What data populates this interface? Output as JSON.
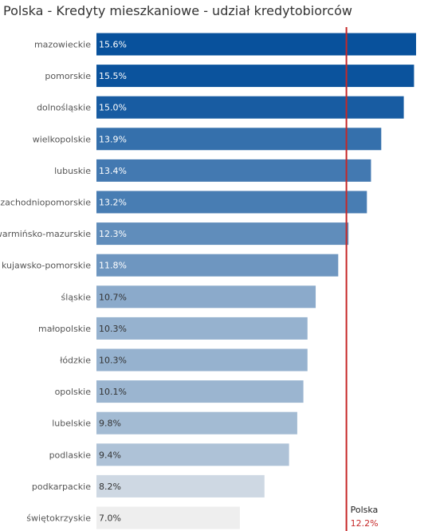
{
  "title": "Polska - Kredyty mieszkaniowe - udział kredytobiorców",
  "chart_data": {
    "type": "bar",
    "orientation": "horizontal",
    "title": "Polska - Kredyty mieszkaniowe - udział kredytobiorców",
    "categories": [
      "mazowieckie",
      "pomorskie",
      "dolnośląskie",
      "wielkopolskie",
      "lubuskie",
      "zachodniopomorskie",
      "warmińsko-mazurskie",
      "kujawsko-pomorskie",
      "śląskie",
      "małopolskie",
      "łódzkie",
      "opolskie",
      "lubelskie",
      "podlaskie",
      "podkarpackie",
      "świętokrzyskie"
    ],
    "values": [
      15.6,
      15.5,
      15.0,
      13.9,
      13.4,
      13.2,
      12.3,
      11.8,
      10.7,
      10.3,
      10.3,
      10.1,
      9.8,
      9.4,
      8.2,
      7.0
    ],
    "value_labels": [
      "15.6%",
      "15.5%",
      "15.0%",
      "13.9%",
      "13.4%",
      "13.2%",
      "12.3%",
      "11.8%",
      "10.7%",
      "10.3%",
      "10.3%",
      "10.1%",
      "9.8%",
      "9.4%",
      "8.2%",
      "7.0%"
    ],
    "xlim": [
      0,
      15.6
    ],
    "reference_line": {
      "label": "Polska",
      "value": 12.2,
      "value_label": "12.2%",
      "color": "#c62828"
    },
    "color_scale": [
      "#eeeeee",
      "#08519c"
    ],
    "grid": false
  }
}
